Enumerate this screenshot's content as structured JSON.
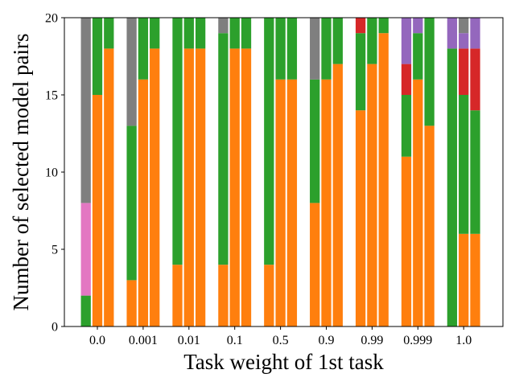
{
  "chart_data": {
    "type": "bar",
    "stacked": true,
    "xlabel": "Task weight of 1st task",
    "ylabel": "Number of selected model pairs",
    "ylim": [
      0,
      20
    ],
    "yticks": [
      0,
      5,
      10,
      15,
      20
    ],
    "categories": [
      "0.0",
      "0.001",
      "0.01",
      "0.1",
      "0.5",
      "0.9",
      "0.99",
      "0.999",
      "1.0"
    ],
    "bars_per_category": 3,
    "colors": {
      "orange": "#ff7f0e",
      "green": "#2ca02c",
      "red": "#d62728",
      "purple": "#9467bd",
      "pink": "#e377c2",
      "gray": "#7f7f7f"
    },
    "bars": [
      [
        [
          {
            "c": "green",
            "v": 2
          },
          {
            "c": "pink",
            "v": 6
          },
          {
            "c": "gray",
            "v": 12
          }
        ],
        [
          {
            "c": "orange",
            "v": 15
          },
          {
            "c": "green",
            "v": 5
          }
        ],
        [
          {
            "c": "orange",
            "v": 18
          },
          {
            "c": "green",
            "v": 2
          }
        ]
      ],
      [
        [
          {
            "c": "orange",
            "v": 3
          },
          {
            "c": "green",
            "v": 10
          },
          {
            "c": "gray",
            "v": 7
          }
        ],
        [
          {
            "c": "orange",
            "v": 16
          },
          {
            "c": "green",
            "v": 4
          }
        ],
        [
          {
            "c": "orange",
            "v": 18
          },
          {
            "c": "green",
            "v": 2
          }
        ]
      ],
      [
        [
          {
            "c": "orange",
            "v": 4
          },
          {
            "c": "green",
            "v": 16
          }
        ],
        [
          {
            "c": "orange",
            "v": 18
          },
          {
            "c": "green",
            "v": 2
          }
        ],
        [
          {
            "c": "orange",
            "v": 18
          },
          {
            "c": "green",
            "v": 2
          }
        ]
      ],
      [
        [
          {
            "c": "orange",
            "v": 4
          },
          {
            "c": "green",
            "v": 15
          },
          {
            "c": "gray",
            "v": 1
          }
        ],
        [
          {
            "c": "orange",
            "v": 18
          },
          {
            "c": "green",
            "v": 2
          }
        ],
        [
          {
            "c": "orange",
            "v": 18
          },
          {
            "c": "green",
            "v": 2
          }
        ]
      ],
      [
        [
          {
            "c": "orange",
            "v": 4
          },
          {
            "c": "green",
            "v": 16
          }
        ],
        [
          {
            "c": "orange",
            "v": 16
          },
          {
            "c": "green",
            "v": 4
          }
        ],
        [
          {
            "c": "orange",
            "v": 16
          },
          {
            "c": "green",
            "v": 4
          }
        ]
      ],
      [
        [
          {
            "c": "orange",
            "v": 8
          },
          {
            "c": "green",
            "v": 8
          },
          {
            "c": "gray",
            "v": 4
          }
        ],
        [
          {
            "c": "orange",
            "v": 16
          },
          {
            "c": "green",
            "v": 4
          }
        ],
        [
          {
            "c": "orange",
            "v": 17
          },
          {
            "c": "green",
            "v": 3
          }
        ]
      ],
      [
        [
          {
            "c": "orange",
            "v": 14
          },
          {
            "c": "green",
            "v": 5
          },
          {
            "c": "red",
            "v": 1
          }
        ],
        [
          {
            "c": "orange",
            "v": 17
          },
          {
            "c": "green",
            "v": 3
          }
        ],
        [
          {
            "c": "orange",
            "v": 19
          },
          {
            "c": "green",
            "v": 1
          }
        ]
      ],
      [
        [
          {
            "c": "orange",
            "v": 11
          },
          {
            "c": "green",
            "v": 4
          },
          {
            "c": "red",
            "v": 2
          },
          {
            "c": "purple",
            "v": 3
          }
        ],
        [
          {
            "c": "orange",
            "v": 16
          },
          {
            "c": "green",
            "v": 3
          },
          {
            "c": "purple",
            "v": 1
          }
        ],
        [
          {
            "c": "orange",
            "v": 13
          },
          {
            "c": "green",
            "v": 7
          }
        ]
      ],
      [
        [
          {
            "c": "green",
            "v": 18
          },
          {
            "c": "purple",
            "v": 2
          }
        ],
        [
          {
            "c": "orange",
            "v": 6
          },
          {
            "c": "green",
            "v": 9
          },
          {
            "c": "red",
            "v": 3
          },
          {
            "c": "purple",
            "v": 1
          },
          {
            "c": "gray",
            "v": 1
          }
        ],
        [
          {
            "c": "orange",
            "v": 6
          },
          {
            "c": "green",
            "v": 8
          },
          {
            "c": "red",
            "v": 4
          },
          {
            "c": "purple",
            "v": 2
          }
        ]
      ]
    ]
  }
}
